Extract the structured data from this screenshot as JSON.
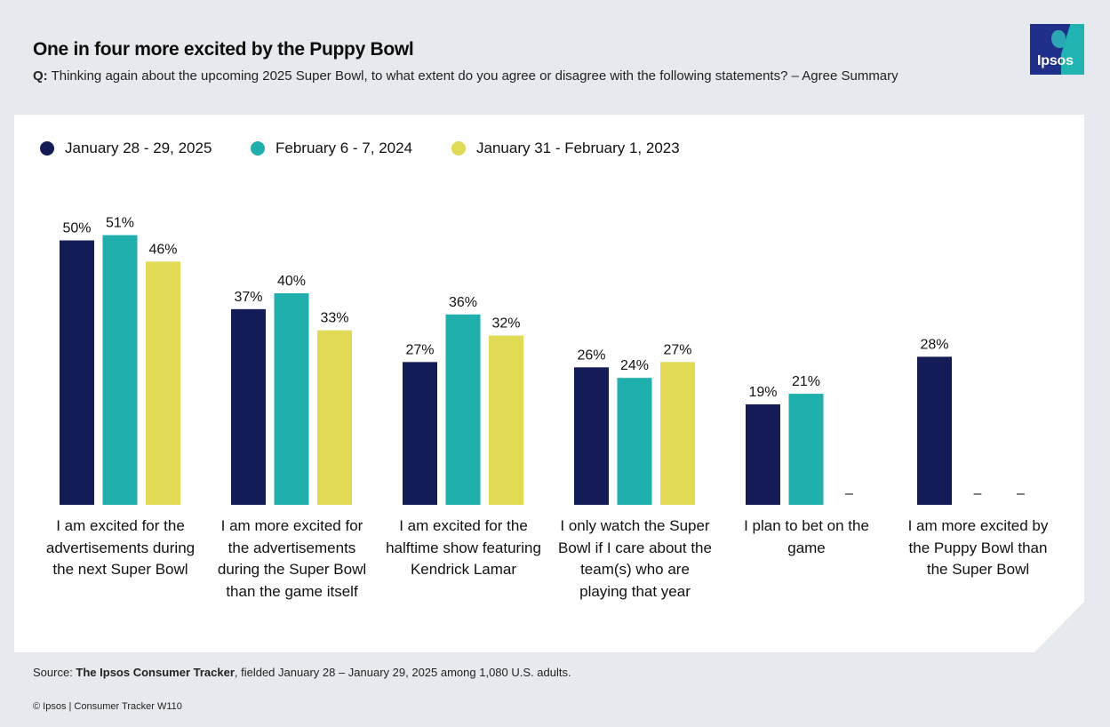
{
  "title": "One in four more excited by the Puppy Bowl",
  "question": {
    "label": "Q:",
    "text": "Thinking again about the upcoming 2025 Super Bowl, to what extent do you agree or disagree with the following statements? – Agree Summary"
  },
  "logo": {
    "text": "Ipsos",
    "icon": "ipsos-logo-icon"
  },
  "footer": {
    "source_prefix": "Source: ",
    "source_bold": "The Ipsos Consumer Tracker",
    "source_rest": ", fielded January 28 – January 29, 2025 among 1,080 U.S. adults.",
    "copyright": "© Ipsos | Consumer Tracker W110"
  },
  "colors": {
    "series_2025": "#141c57",
    "series_2024": "#1fb0ae",
    "series_2023": "#e1da54"
  },
  "chart_data": {
    "type": "bar",
    "title": "One in four more excited by the Puppy Bowl",
    "xlabel": "",
    "ylabel": "",
    "ylim": [
      0,
      60
    ],
    "grid": false,
    "legend_position": "top-left",
    "categories": [
      "I am excited for the advertisements during the next Super Bowl",
      "I am more excited for the advertisements during the Super Bowl than the game itself",
      "I am excited for the halftime show featuring Kendrick Lamar",
      "I only watch the Super Bowl if I care about the team(s) who are playing that year",
      "I plan to bet on the game",
      "I am more excited by the Puppy Bowl than the Super Bowl"
    ],
    "series": [
      {
        "name": "January 28 - 29, 2025",
        "values": [
          50,
          37,
          27,
          26,
          19,
          28
        ]
      },
      {
        "name": "February 6 - 7, 2024",
        "values": [
          51,
          40,
          36,
          24,
          21,
          null
        ]
      },
      {
        "name": "January 31 - February 1, 2023",
        "values": [
          46,
          33,
          32,
          27,
          null,
          null
        ]
      }
    ],
    "value_suffix": "%",
    "missing_label": "–"
  }
}
